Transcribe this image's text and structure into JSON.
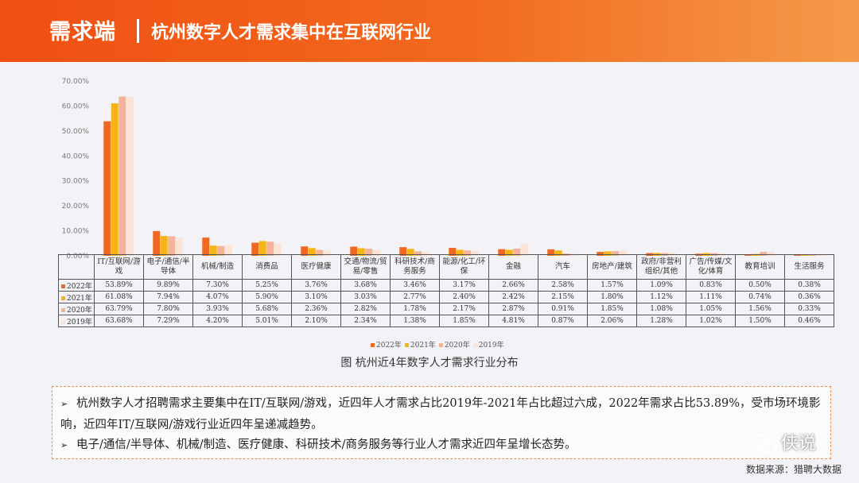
{
  "header": {
    "title": "需求端",
    "subtitle": "杭州数字人才需求集中在互联网行业"
  },
  "chart_data": {
    "type": "bar",
    "caption": "图 杭州近4年数字人才需求行业分布",
    "ylim": [
      0,
      70
    ],
    "yticks": [
      "0.00%",
      "10.00%",
      "20.00%",
      "30.00%",
      "40.00%",
      "50.00%",
      "60.00%",
      "70.00%"
    ],
    "categories": [
      "IT/互联网/游戏",
      "电子/通信/半导体",
      "机械/制造",
      "消费品",
      "医疗健康",
      "交通/物流/贸易/零售",
      "科研技术/商务服务",
      "能源/化工/环保",
      "金融",
      "汽车",
      "房地产/建筑",
      "政府/非营利组织/其他",
      "广告/传媒/文化/体育",
      "教育培训",
      "生活服务"
    ],
    "series": [
      {
        "name": "2022年",
        "color": "#ee6a22",
        "values": [
          53.89,
          9.89,
          7.3,
          5.25,
          3.76,
          3.68,
          3.46,
          3.17,
          2.66,
          2.58,
          1.57,
          1.09,
          0.83,
          0.5,
          0.38
        ],
        "labels": [
          "53.89%",
          "9.89%",
          "7.30%",
          "5.25%",
          "3.76%",
          "3.68%",
          "3.46%",
          "3.17%",
          "2.66%",
          "2.58%",
          "1.57%",
          "1.09%",
          "0.83%",
          "0.50%",
          "0.38%"
        ]
      },
      {
        "name": "2021年",
        "color": "#f5b417",
        "values": [
          61.08,
          7.94,
          4.07,
          5.9,
          3.1,
          3.03,
          2.77,
          2.4,
          2.42,
          2.15,
          1.8,
          1.12,
          1.11,
          0.74,
          0.36
        ],
        "labels": [
          "61.08%",
          "7.94%",
          "4.07%",
          "5.90%",
          "3.10%",
          "3.03%",
          "2.77%",
          "2.40%",
          "2.42%",
          "2.15%",
          "1.80%",
          "1.12%",
          "1.11%",
          "0.74%",
          "0.36%"
        ]
      },
      {
        "name": "2020年",
        "color": "#f5b399",
        "values": [
          63.79,
          7.8,
          3.93,
          5.68,
          2.36,
          2.82,
          1.78,
          2.17,
          2.87,
          0.91,
          1.85,
          1.08,
          1.05,
          1.56,
          0.33
        ],
        "labels": [
          "63.79%",
          "7.80%",
          "3.93%",
          "5.68%",
          "2.36%",
          "2.82%",
          "1.78%",
          "2.17%",
          "2.87%",
          "0.91%",
          "1.85%",
          "1.08%",
          "1.05%",
          "1.56%",
          "0.33%"
        ]
      },
      {
        "name": "2019年",
        "color": "#fbe3d6",
        "values": [
          63.68,
          7.29,
          4.2,
          5.01,
          2.1,
          2.34,
          1.38,
          1.85,
          4.81,
          0.87,
          2.06,
          1.28,
          1.02,
          1.5,
          0.46
        ],
        "labels": [
          "63.68%",
          "7.29%",
          "4.20%",
          "5.01%",
          "2.10%",
          "2.34%",
          "1.38%",
          "1.85%",
          "4.81%",
          "0.87%",
          "2.06%",
          "1.28%",
          "1.02%",
          "1.50%",
          "0.46%"
        ]
      }
    ]
  },
  "notes": [
    "杭州数字人才招聘需求主要集中在IT/互联网/游戏，近四年人才需求占比2019年-2021年占比超过六成，2022年需求占比53.89%，受市场环境影响，近四年IT/互联网/游戏行业近四年呈递减趋势。",
    "电子/通信/半导体、机械/制造、医疗健康、科研技术/商务服务等行业人才需求近四年呈增长态势。"
  ],
  "bullet": "➢",
  "watermark": "侠说",
  "source": "数据来源：猎聘大数据"
}
